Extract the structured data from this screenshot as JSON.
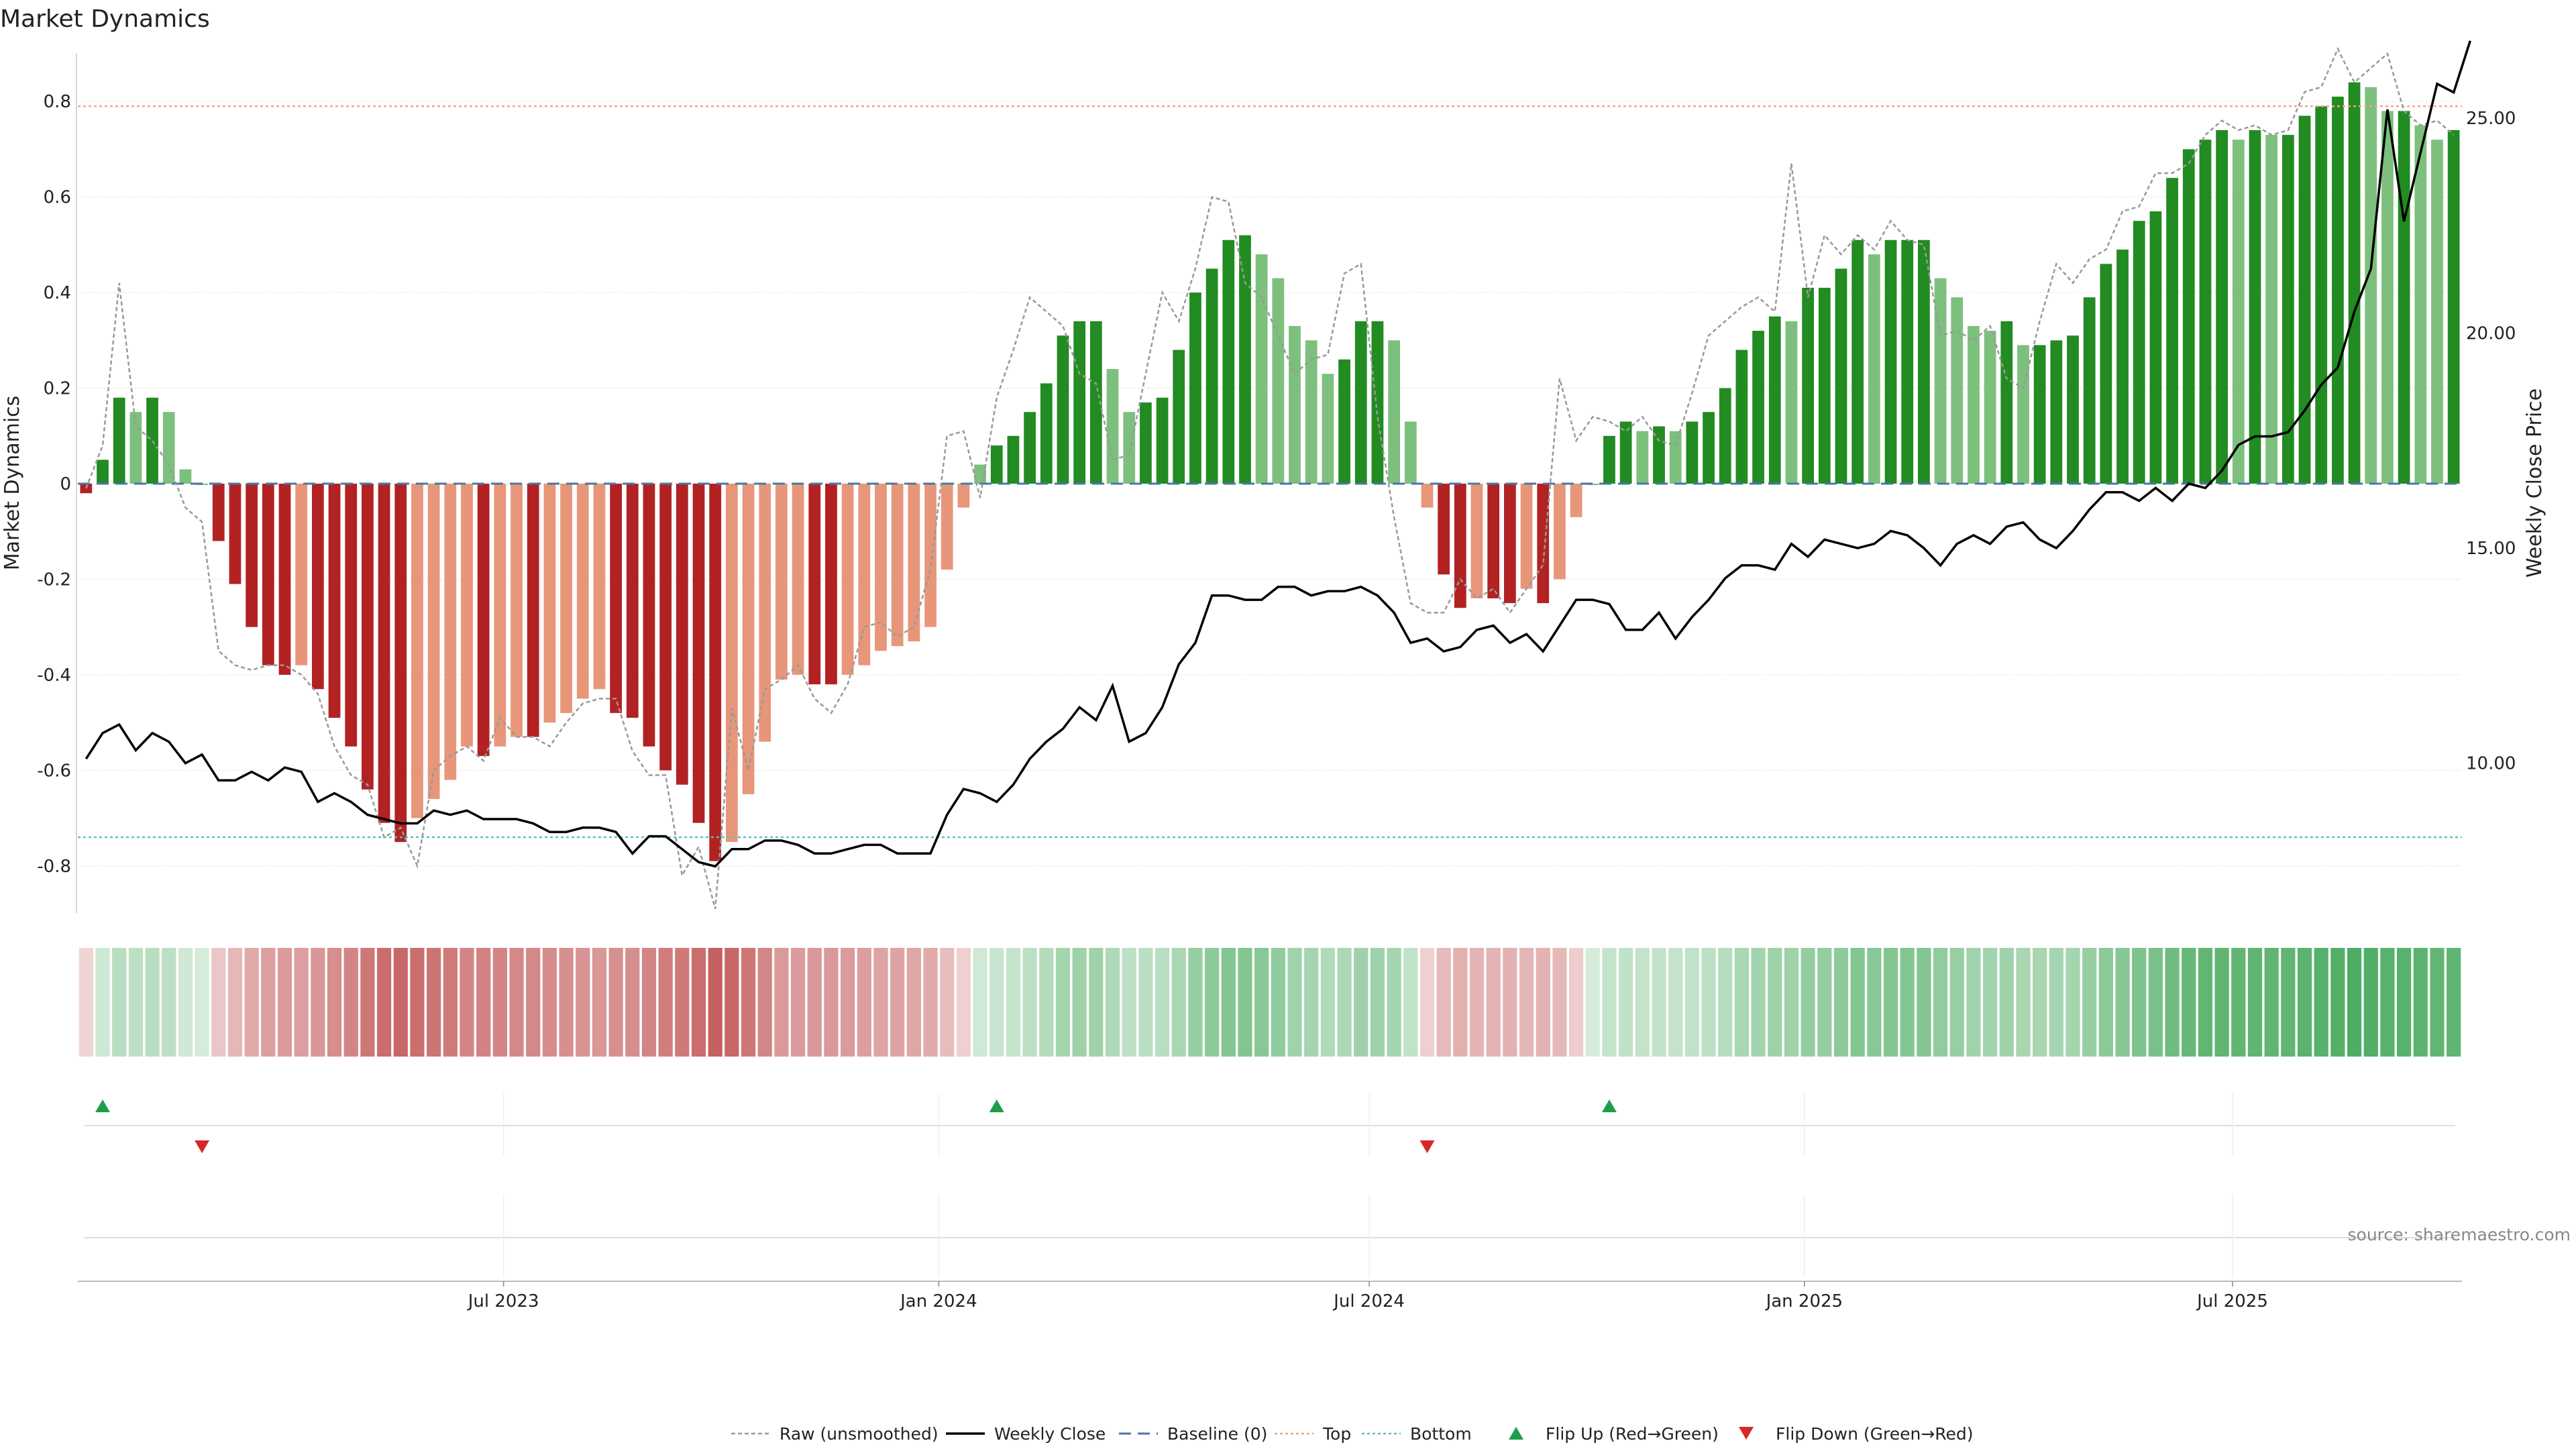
{
  "chart_data": {
    "type": "bar",
    "title": "Market Dynamics",
    "ylabel_left": "Market Dynamics",
    "ylabel_right": "Weekly Close Price",
    "ylim_left": [
      -0.9,
      0.9
    ],
    "yticks_left": [
      "0.8",
      "0.6",
      "0.4",
      "0.2",
      "0",
      "-0.2",
      "-0.4",
      "-0.6",
      "-0.8"
    ],
    "ylim_right": [
      6.5,
      26.5
    ],
    "yticks_right": [
      "25.00",
      "20.00",
      "15.00",
      "10.00"
    ],
    "x_start": "2023-01-02",
    "x_step_days": 7,
    "x_ticks": [
      "Jul 2023",
      "Jan 2024",
      "Jul 2024",
      "Jan 2025",
      "Jul 2025"
    ],
    "thresholds": {
      "top": 0.79,
      "bottom": -0.74,
      "baseline": 0
    },
    "bars": [
      -0.02,
      0.05,
      0.18,
      0.15,
      0.18,
      0.15,
      0.03,
      0.0,
      -0.12,
      -0.21,
      -0.3,
      -0.38,
      -0.4,
      -0.38,
      -0.43,
      -0.49,
      -0.55,
      -0.64,
      -0.71,
      -0.75,
      -0.7,
      -0.66,
      -0.62,
      -0.55,
      -0.57,
      -0.55,
      -0.53,
      -0.53,
      -0.5,
      -0.48,
      -0.45,
      -0.43,
      -0.48,
      -0.49,
      -0.55,
      -0.6,
      -0.63,
      -0.71,
      -0.79,
      -0.75,
      -0.65,
      -0.54,
      -0.41,
      -0.4,
      -0.42,
      -0.42,
      -0.4,
      -0.38,
      -0.35,
      -0.34,
      -0.33,
      -0.3,
      -0.18,
      -0.05,
      0.04,
      0.08,
      0.1,
      0.15,
      0.21,
      0.31,
      0.34,
      0.34,
      0.24,
      0.15,
      0.17,
      0.18,
      0.28,
      0.4,
      0.45,
      0.51,
      0.52,
      0.48,
      0.43,
      0.33,
      0.3,
      0.23,
      0.26,
      0.34,
      0.34,
      0.3,
      0.13,
      -0.05,
      -0.19,
      -0.26,
      -0.24,
      -0.24,
      -0.25,
      -0.22,
      -0.25,
      -0.2,
      -0.07,
      0.0,
      0.1,
      0.13,
      0.11,
      0.12,
      0.11,
      0.13,
      0.15,
      0.2,
      0.28,
      0.32,
      0.35,
      0.34,
      0.41,
      0.41,
      0.45,
      0.51,
      0.48,
      0.51,
      0.51,
      0.51,
      0.43,
      0.39,
      0.33,
      0.32,
      0.34,
      0.29,
      0.29,
      0.3,
      0.31,
      0.39,
      0.46,
      0.49,
      0.55,
      0.57,
      0.64,
      0.7,
      0.72,
      0.74,
      0.72,
      0.74,
      0.73,
      0.73,
      0.77,
      0.79,
      0.81,
      0.84,
      0.83,
      0.78,
      0.78,
      0.75,
      0.72,
      0.74
    ],
    "raw": [
      -0.01,
      0.08,
      0.42,
      0.12,
      0.09,
      0.04,
      -0.05,
      -0.08,
      -0.35,
      -0.38,
      -0.39,
      -0.38,
      -0.38,
      -0.4,
      -0.44,
      -0.55,
      -0.61,
      -0.63,
      -0.74,
      -0.72,
      -0.8,
      -0.6,
      -0.57,
      -0.55,
      -0.58,
      -0.49,
      -0.53,
      -0.53,
      -0.55,
      -0.5,
      -0.46,
      -0.45,
      -0.45,
      -0.56,
      -0.61,
      -0.61,
      -0.82,
      -0.76,
      -0.89,
      -0.47,
      -0.6,
      -0.43,
      -0.41,
      -0.38,
      -0.45,
      -0.48,
      -0.42,
      -0.3,
      -0.29,
      -0.32,
      -0.3,
      -0.18,
      0.1,
      0.11,
      -0.03,
      0.18,
      0.28,
      0.39,
      0.36,
      0.33,
      0.23,
      0.21,
      0.05,
      0.06,
      0.23,
      0.4,
      0.34,
      0.45,
      0.6,
      0.59,
      0.42,
      0.39,
      0.31,
      0.23,
      0.26,
      0.27,
      0.44,
      0.46,
      0.14,
      -0.07,
      -0.25,
      -0.27,
      -0.27,
      -0.2,
      -0.24,
      -0.22,
      -0.27,
      -0.22,
      -0.17,
      0.22,
      0.09,
      0.14,
      0.13,
      0.11,
      0.14,
      0.09,
      0.08,
      0.19,
      0.31,
      0.34,
      0.37,
      0.39,
      0.36,
      0.67,
      0.39,
      0.52,
      0.48,
      0.52,
      0.49,
      0.55,
      0.51,
      0.5,
      0.31,
      0.32,
      0.3,
      0.33,
      0.22,
      0.2,
      0.34,
      0.46,
      0.42,
      0.47,
      0.49,
      0.57,
      0.58,
      0.65,
      0.65,
      0.67,
      0.73,
      0.76,
      0.74,
      0.75,
      0.73,
      0.74,
      0.82,
      0.83,
      0.91,
      0.84,
      0.87,
      0.9,
      0.78,
      0.75,
      0.76,
      0.73
    ],
    "series": [
      {
        "name": "Weekly Close",
        "values": [
          10.1,
          10.7,
          10.9,
          10.3,
          10.7,
          10.5,
          10.0,
          10.2,
          9.6,
          9.6,
          9.8,
          9.6,
          9.9,
          9.8,
          9.1,
          9.3,
          9.1,
          8.8,
          8.7,
          8.6,
          8.6,
          8.9,
          8.8,
          8.9,
          8.7,
          8.7,
          8.7,
          8.6,
          8.4,
          8.4,
          8.5,
          8.5,
          8.4,
          7.9,
          8.3,
          8.3,
          8.0,
          7.7,
          7.6,
          8.0,
          8.0,
          8.2,
          8.2,
          8.1,
          7.9,
          7.9,
          8.0,
          8.1,
          8.1,
          7.9,
          7.9,
          7.9,
          8.8,
          9.4,
          9.3,
          9.1,
          9.5,
          10.1,
          10.5,
          10.8,
          11.3,
          11.0,
          11.8,
          10.5,
          10.7,
          11.3,
          12.3,
          12.8,
          13.9,
          13.9,
          13.8,
          13.8,
          14.1,
          14.1,
          13.9,
          14.0,
          14.0,
          14.1,
          13.9,
          13.5,
          12.8,
          12.9,
          12.6,
          12.7,
          13.1,
          13.2,
          12.8,
          13.0,
          12.6,
          13.2,
          13.8,
          13.8,
          13.7,
          13.1,
          13.1,
          13.5,
          12.9,
          13.4,
          13.8,
          14.3,
          14.6,
          14.6,
          14.5,
          15.1,
          14.8,
          15.2,
          15.1,
          15.0,
          15.1,
          15.4,
          15.3,
          15.0,
          14.6,
          15.1,
          15.3,
          15.1,
          15.5,
          15.6,
          15.2,
          15.0,
          15.4,
          15.9,
          16.3,
          16.3,
          16.1,
          16.4,
          16.1,
          16.5,
          16.4,
          16.8,
          17.4,
          17.6,
          17.6,
          17.7,
          18.2,
          18.8,
          19.2,
          20.5,
          21.5,
          25.2,
          22.6,
          24.2,
          25.8,
          25.6,
          26.8
        ]
      },
      {
        "name": "Raw (unsmoothed)"
      },
      {
        "name": "Baseline (0)"
      },
      {
        "name": "Top"
      },
      {
        "name": "Bottom"
      },
      {
        "name": "Flip Up (Red→Green)"
      },
      {
        "name": "Flip Down (Green→Red)"
      }
    ],
    "flip_up_index": [
      1,
      55,
      92
    ],
    "flip_down_index": [
      7,
      81
    ],
    "source": "source: sharemaestro.com",
    "colors": {
      "strong_green": "#228B22",
      "light_green": "#7DC07D",
      "strong_red": "#B22222",
      "light_red": "#E8967A",
      "close_line": "#000000",
      "raw_line": "#999999",
      "baseline": "#4A76A8",
      "top": "#F4A582",
      "bottom": "#5BC0C8",
      "flip_up": "#1E9E4A",
      "flip_down": "#D62728"
    }
  }
}
